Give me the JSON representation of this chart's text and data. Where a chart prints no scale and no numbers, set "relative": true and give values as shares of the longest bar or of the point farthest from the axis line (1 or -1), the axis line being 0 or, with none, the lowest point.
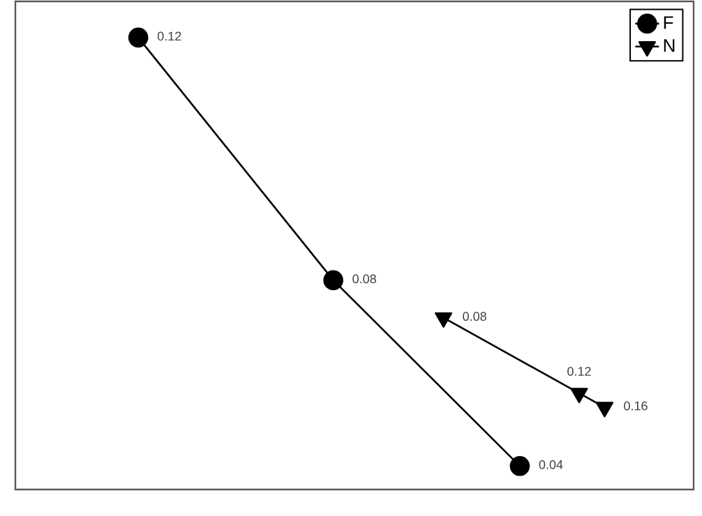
{
  "chart_data": {
    "type": "line",
    "relative": true,
    "categories": [
      null,
      null,
      null,
      null,
      null,
      null,
      null,
      null,
      null,
      null,
      null,
      null,
      null,
      null,
      null,
      null,
      null,
      null,
      null,
      null,
      null,
      null,
      null,
      null,
      null,
      null,
      null,
      null,
      null,
      null,
      null,
      null,
      null,
      null,
      null,
      null,
      null,
      null,
      null,
      null,
      null,
      null,
      null,
      null,
      null,
      null,
      null,
      null,
      null,
      null,
      null,
      null,
      null,
      null,
      null,
      null,
      null,
      null,
      null,
      null,
      null,
      null,
      null,
      null,
      null,
      null,
      null,
      null,
      null,
      null,
      null,
      null,
      null,
      null,
      null,
      null,
      null,
      null,
      null,
      null
    ],
    "tick_labels": false,
    "legend": "top right",
    "series": [
      {
        "name": "F",
        "color": "#000000",
        "marker": "circle",
        "values": [
          null,
          null,
          null,
          null,
          null,
          null,
          null,
          null,
          null,
          null,
          null,
          null,
          null,
          null,
          1,
          null,
          null,
          null,
          null,
          null,
          null,
          null,
          null,
          null,
          null,
          null,
          null,
          null,
          null,
          null,
          null,
          null,
          null,
          null,
          null,
          null,
          null,
          0.463,
          null,
          null,
          null,
          null,
          null,
          null,
          null,
          null,
          null,
          null,
          null,
          null,
          null,
          null,
          null,
          null,
          null,
          null,
          null,
          null,
          null,
          0.052,
          null,
          null,
          null,
          null,
          null,
          null,
          null,
          null,
          null,
          null,
          null,
          null,
          null,
          null,
          null,
          null,
          null,
          null,
          null,
          null
        ]
      },
      {
        "name": "N",
        "color": "#000000",
        "marker": "triangle",
        "values": [
          null,
          null,
          null,
          null,
          null,
          null,
          null,
          null,
          null,
          null,
          null,
          null,
          null,
          null,
          null,
          null,
          null,
          null,
          null,
          null,
          null,
          null,
          null,
          null,
          null,
          null,
          null,
          null,
          null,
          null,
          null,
          null,
          null,
          null,
          null,
          null,
          null,
          null,
          null,
          null,
          null,
          null,
          null,
          null,
          null,
          null,
          null,
          null,
          null,
          null,
          0.38,
          null,
          null,
          null,
          null,
          null,
          null,
          null,
          null,
          null,
          null,
          null,
          null,
          null,
          null,
          null,
          0.213,
          null,
          null,
          0.182,
          null,
          null,
          null,
          null,
          null,
          null,
          null,
          null,
          null,
          null
        ]
      }
    ],
    "annotations": [
      "0.12",
      "0.08",
      "0.04",
      "0.08",
      "0.12",
      "0.16"
    ]
  }
}
